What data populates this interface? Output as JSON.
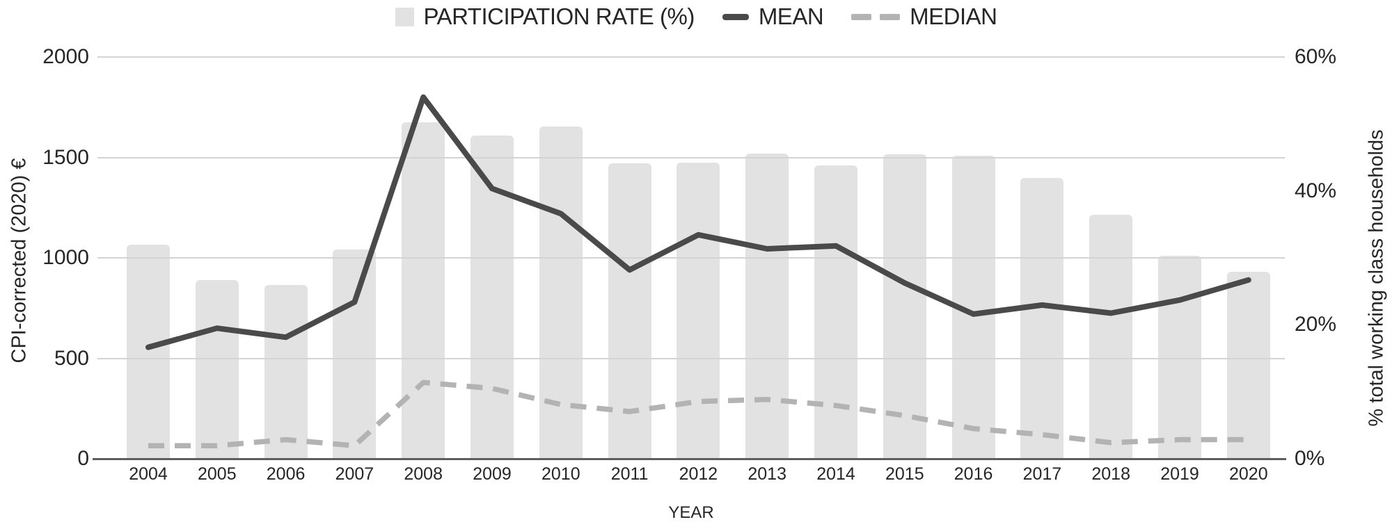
{
  "legend": {
    "items": [
      {
        "label": "PARTICIPATION RATE (%)",
        "swatch": "bar"
      },
      {
        "label": "MEAN",
        "swatch": "line"
      },
      {
        "label": "MEDIAN",
        "swatch": "dashed-line"
      }
    ]
  },
  "chart_data": {
    "type": "bar+line combo, dual axis",
    "title": "",
    "categories": [
      "2004",
      "2005",
      "2006",
      "2007",
      "2008",
      "2009",
      "2010",
      "2011",
      "2012",
      "2013",
      "2014",
      "2015",
      "2016",
      "2017",
      "2018",
      "2019",
      "2020"
    ],
    "series": [
      {
        "name": "PARTICIPATION RATE (%)",
        "type": "bar",
        "axis": "right",
        "unit": "%",
        "values": [
          32.0,
          26.7,
          26.0,
          31.2,
          50.2,
          48.3,
          49.6,
          44.1,
          44.2,
          45.6,
          43.8,
          45.5,
          45.3,
          41.9,
          36.4,
          30.3,
          27.9
        ]
      },
      {
        "name": "MEAN",
        "type": "line",
        "axis": "left",
        "unit": "CPI-corrected (2020) EUR",
        "values": [
          555,
          650,
          605,
          780,
          1800,
          1345,
          1220,
          940,
          1115,
          1045,
          1060,
          875,
          720,
          765,
          725,
          790,
          890
        ]
      },
      {
        "name": "MEDIAN",
        "type": "dashed-line",
        "axis": "left",
        "unit": "CPI-corrected (2020) EUR",
        "values": [
          65,
          65,
          95,
          65,
          380,
          350,
          270,
          235,
          285,
          295,
          265,
          215,
          150,
          120,
          80,
          95,
          95
        ]
      }
    ],
    "left_axis": {
      "label": "CPI-corrected (2020) €",
      "min": 0,
      "max": 2000,
      "ticks": [
        2000,
        1500,
        1000,
        500,
        0
      ]
    },
    "right_axis": {
      "label": "% total working class households",
      "min": 0,
      "max": 60,
      "ticks": [
        60,
        40,
        20,
        0
      ],
      "tick_labels": [
        "60%",
        "40%",
        "20%",
        "0%"
      ]
    },
    "x_label": "YEAR",
    "grid": true,
    "legend_position": "top-center",
    "colors": {
      "bar": "#e2e2e2",
      "mean": "#4a4a4a",
      "median": "#b3b3b3",
      "gridline": "#d4d4d4",
      "axis_line": "#5e5e5e",
      "text": "#262626"
    }
  }
}
